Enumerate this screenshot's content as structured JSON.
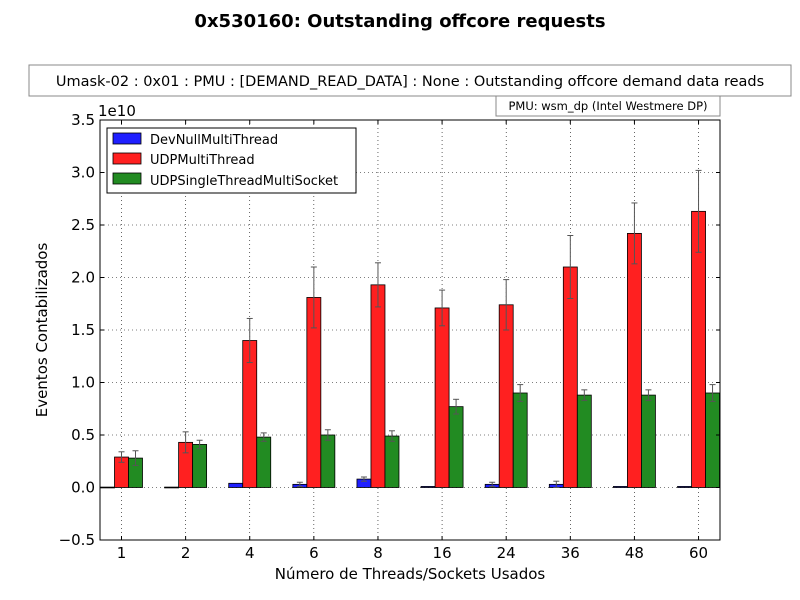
{
  "chart_data": {
    "type": "bar",
    "title": "0x530160: Outstanding offcore requests",
    "subtitle": "Umask-02 : 0x01 : PMU : [DEMAND_READ_DATA] : None : Outstanding offcore demand data reads",
    "pmu_note": "PMU: wsm_dp (Intel Westmere DP)",
    "xlabel": "Número de Threads/Sockets Usados",
    "ylabel": "Eventos Contabilizados",
    "y_multiplier": "1e10",
    "ylim": [
      -0.5,
      3.5
    ],
    "yticks": [
      "−0.5",
      "0.0",
      "0.5",
      "1.0",
      "1.5",
      "2.0",
      "2.5",
      "3.0",
      "3.5"
    ],
    "ytick_values": [
      -0.5,
      0.0,
      0.5,
      1.0,
      1.5,
      2.0,
      2.5,
      3.0,
      3.5
    ],
    "categories": [
      "1",
      "2",
      "4",
      "6",
      "8",
      "16",
      "24",
      "36",
      "48",
      "60"
    ],
    "grid": true,
    "legend_position": "top-left",
    "series": [
      {
        "name": "DevNullMultiThread",
        "color": "#1f1fff",
        "values": [
          0.0,
          0.0,
          0.04,
          0.03,
          0.08,
          0.01,
          0.03,
          0.03,
          0.01,
          0.01
        ],
        "errors": [
          0.0,
          0.0,
          0.0,
          0.02,
          0.02,
          0.0,
          0.02,
          0.03,
          0.0,
          0.0
        ]
      },
      {
        "name": "UDPMultiThread",
        "color": "#ff2020",
        "values": [
          0.29,
          0.43,
          1.4,
          1.81,
          1.93,
          1.71,
          1.74,
          2.1,
          2.42,
          2.63
        ],
        "errors": [
          0.05,
          0.1,
          0.21,
          0.29,
          0.21,
          0.17,
          0.24,
          0.3,
          0.29,
          0.39
        ]
      },
      {
        "name": "UDPSingleThreadMultiSocket",
        "color": "#228b22",
        "values": [
          0.28,
          0.41,
          0.48,
          0.5,
          0.49,
          0.77,
          0.9,
          0.88,
          0.88,
          0.9
        ],
        "errors": [
          0.07,
          0.04,
          0.04,
          0.05,
          0.05,
          0.07,
          0.08,
          0.05,
          0.05,
          0.08
        ]
      }
    ]
  }
}
